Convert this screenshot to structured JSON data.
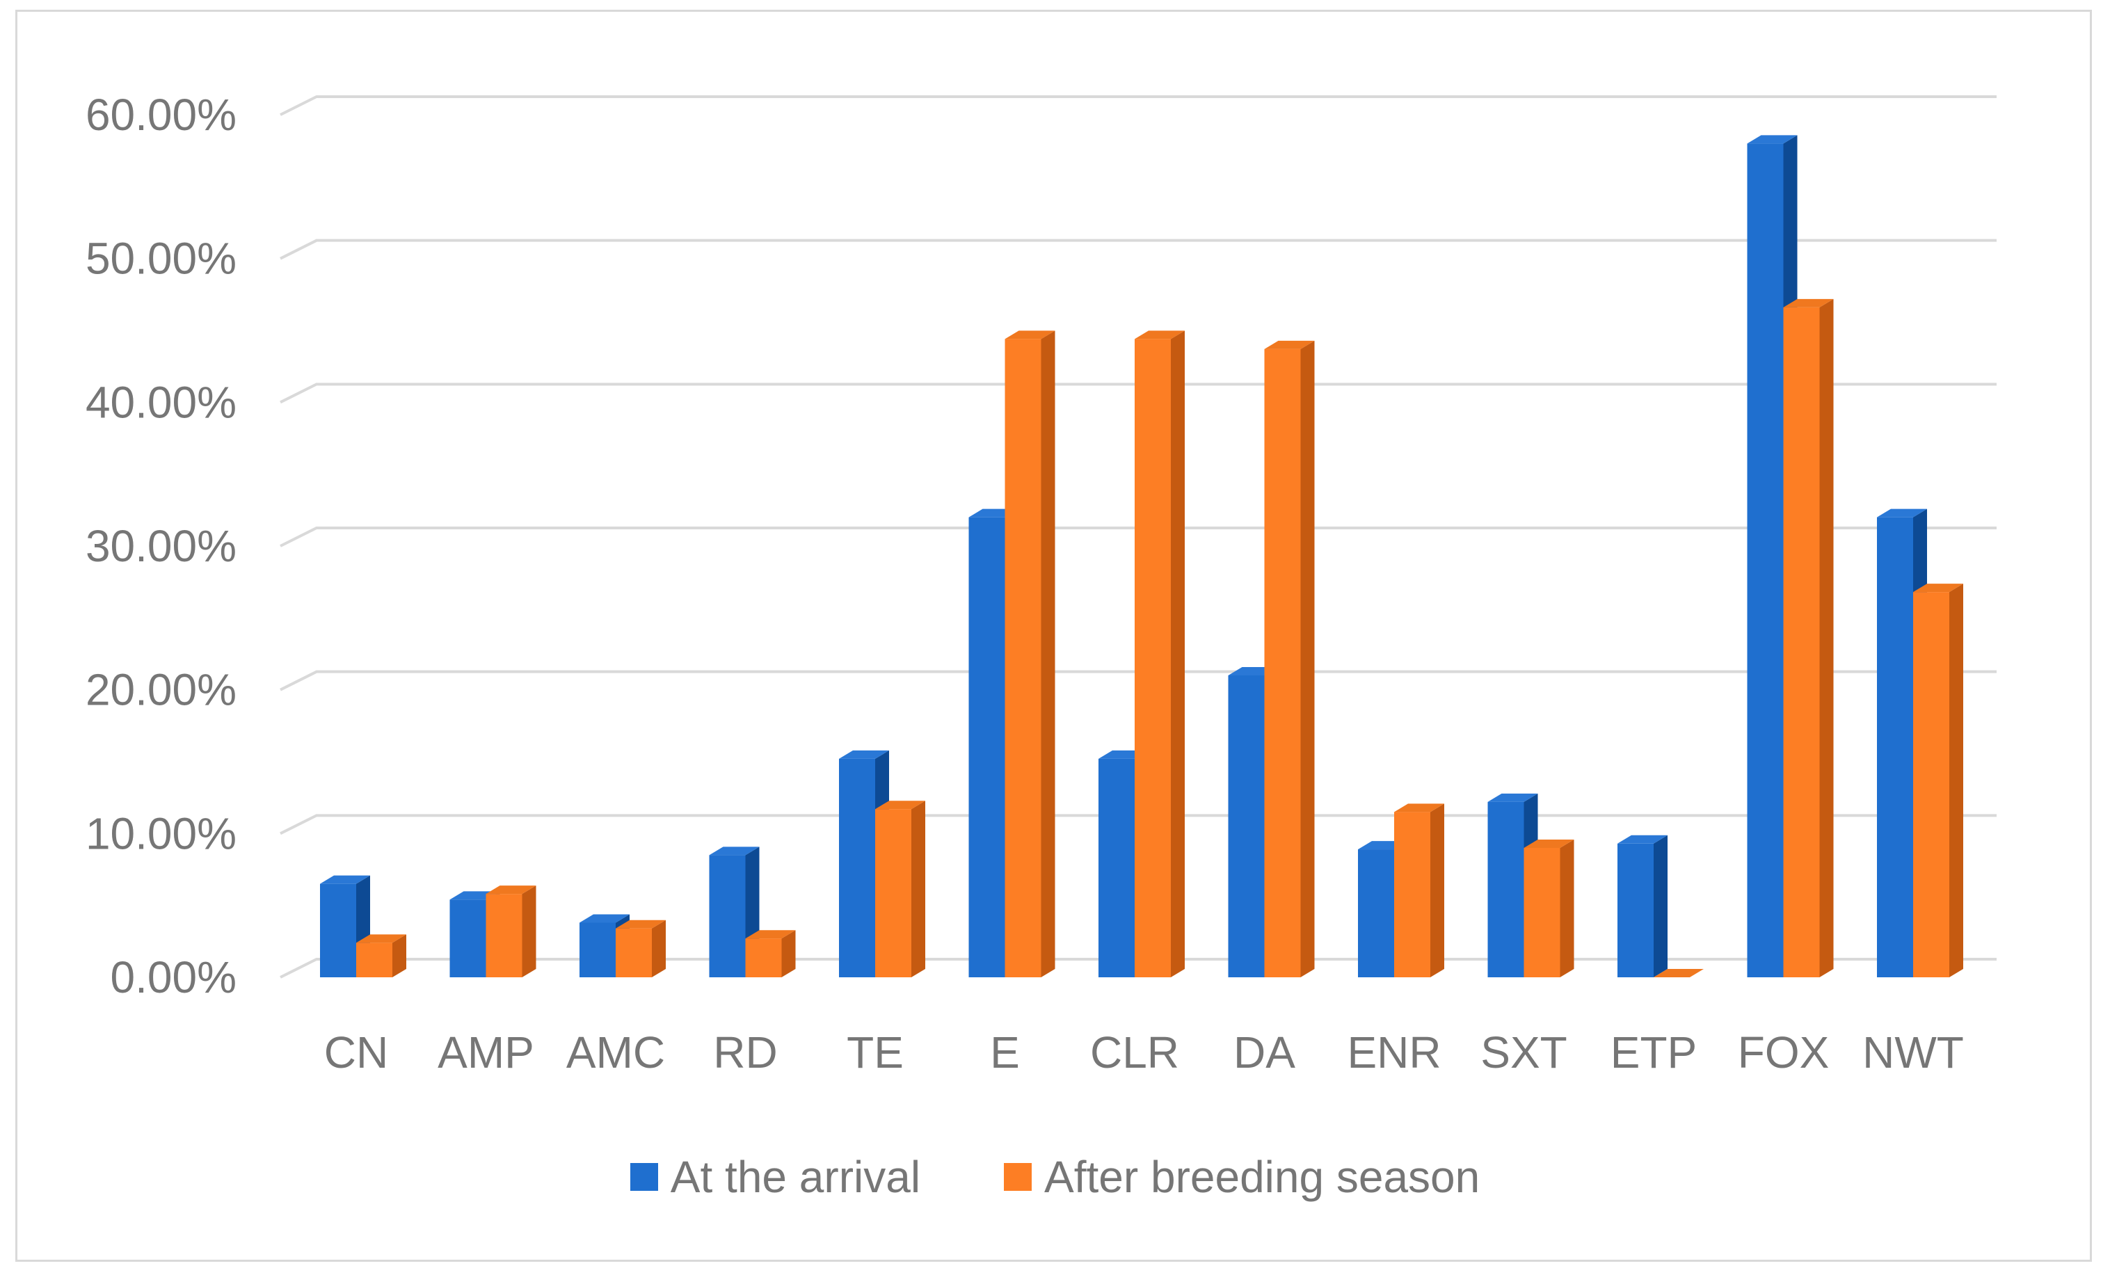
{
  "chart_data": {
    "type": "bar",
    "title": "",
    "xlabel": "",
    "ylabel": "",
    "ylim": [
      0,
      60
    ],
    "y_ticks": [
      "0.00%",
      "10.00%",
      "20.00%",
      "30.00%",
      "40.00%",
      "50.00%",
      "60.00%"
    ],
    "categories": [
      "CN",
      "AMP",
      "AMC",
      "RD",
      "TE",
      "E",
      "CLR",
      "DA",
      "ENR",
      "SXT",
      "ETP",
      "FOX",
      "NWT"
    ],
    "series": [
      {
        "name": "At the arrival",
        "color": "#1f6fcf",
        "side_color": "#0d4a94",
        "top_color": "#2a78d6",
        "values": [
          6.5,
          5.4,
          3.8,
          8.5,
          15.2,
          32.0,
          15.2,
          21.0,
          8.9,
          12.2,
          9.3,
          58.0,
          32.0
        ]
      },
      {
        "name": "After breeding season",
        "color": "#fd7e24",
        "side_color": "#c55a11",
        "top_color": "#f0781f",
        "values": [
          2.4,
          5.8,
          3.4,
          2.7,
          11.7,
          44.4,
          44.4,
          43.7,
          11.5,
          9.0,
          0.0,
          46.6,
          26.8
        ]
      }
    ],
    "grid": true,
    "legend_position": "bottom"
  }
}
